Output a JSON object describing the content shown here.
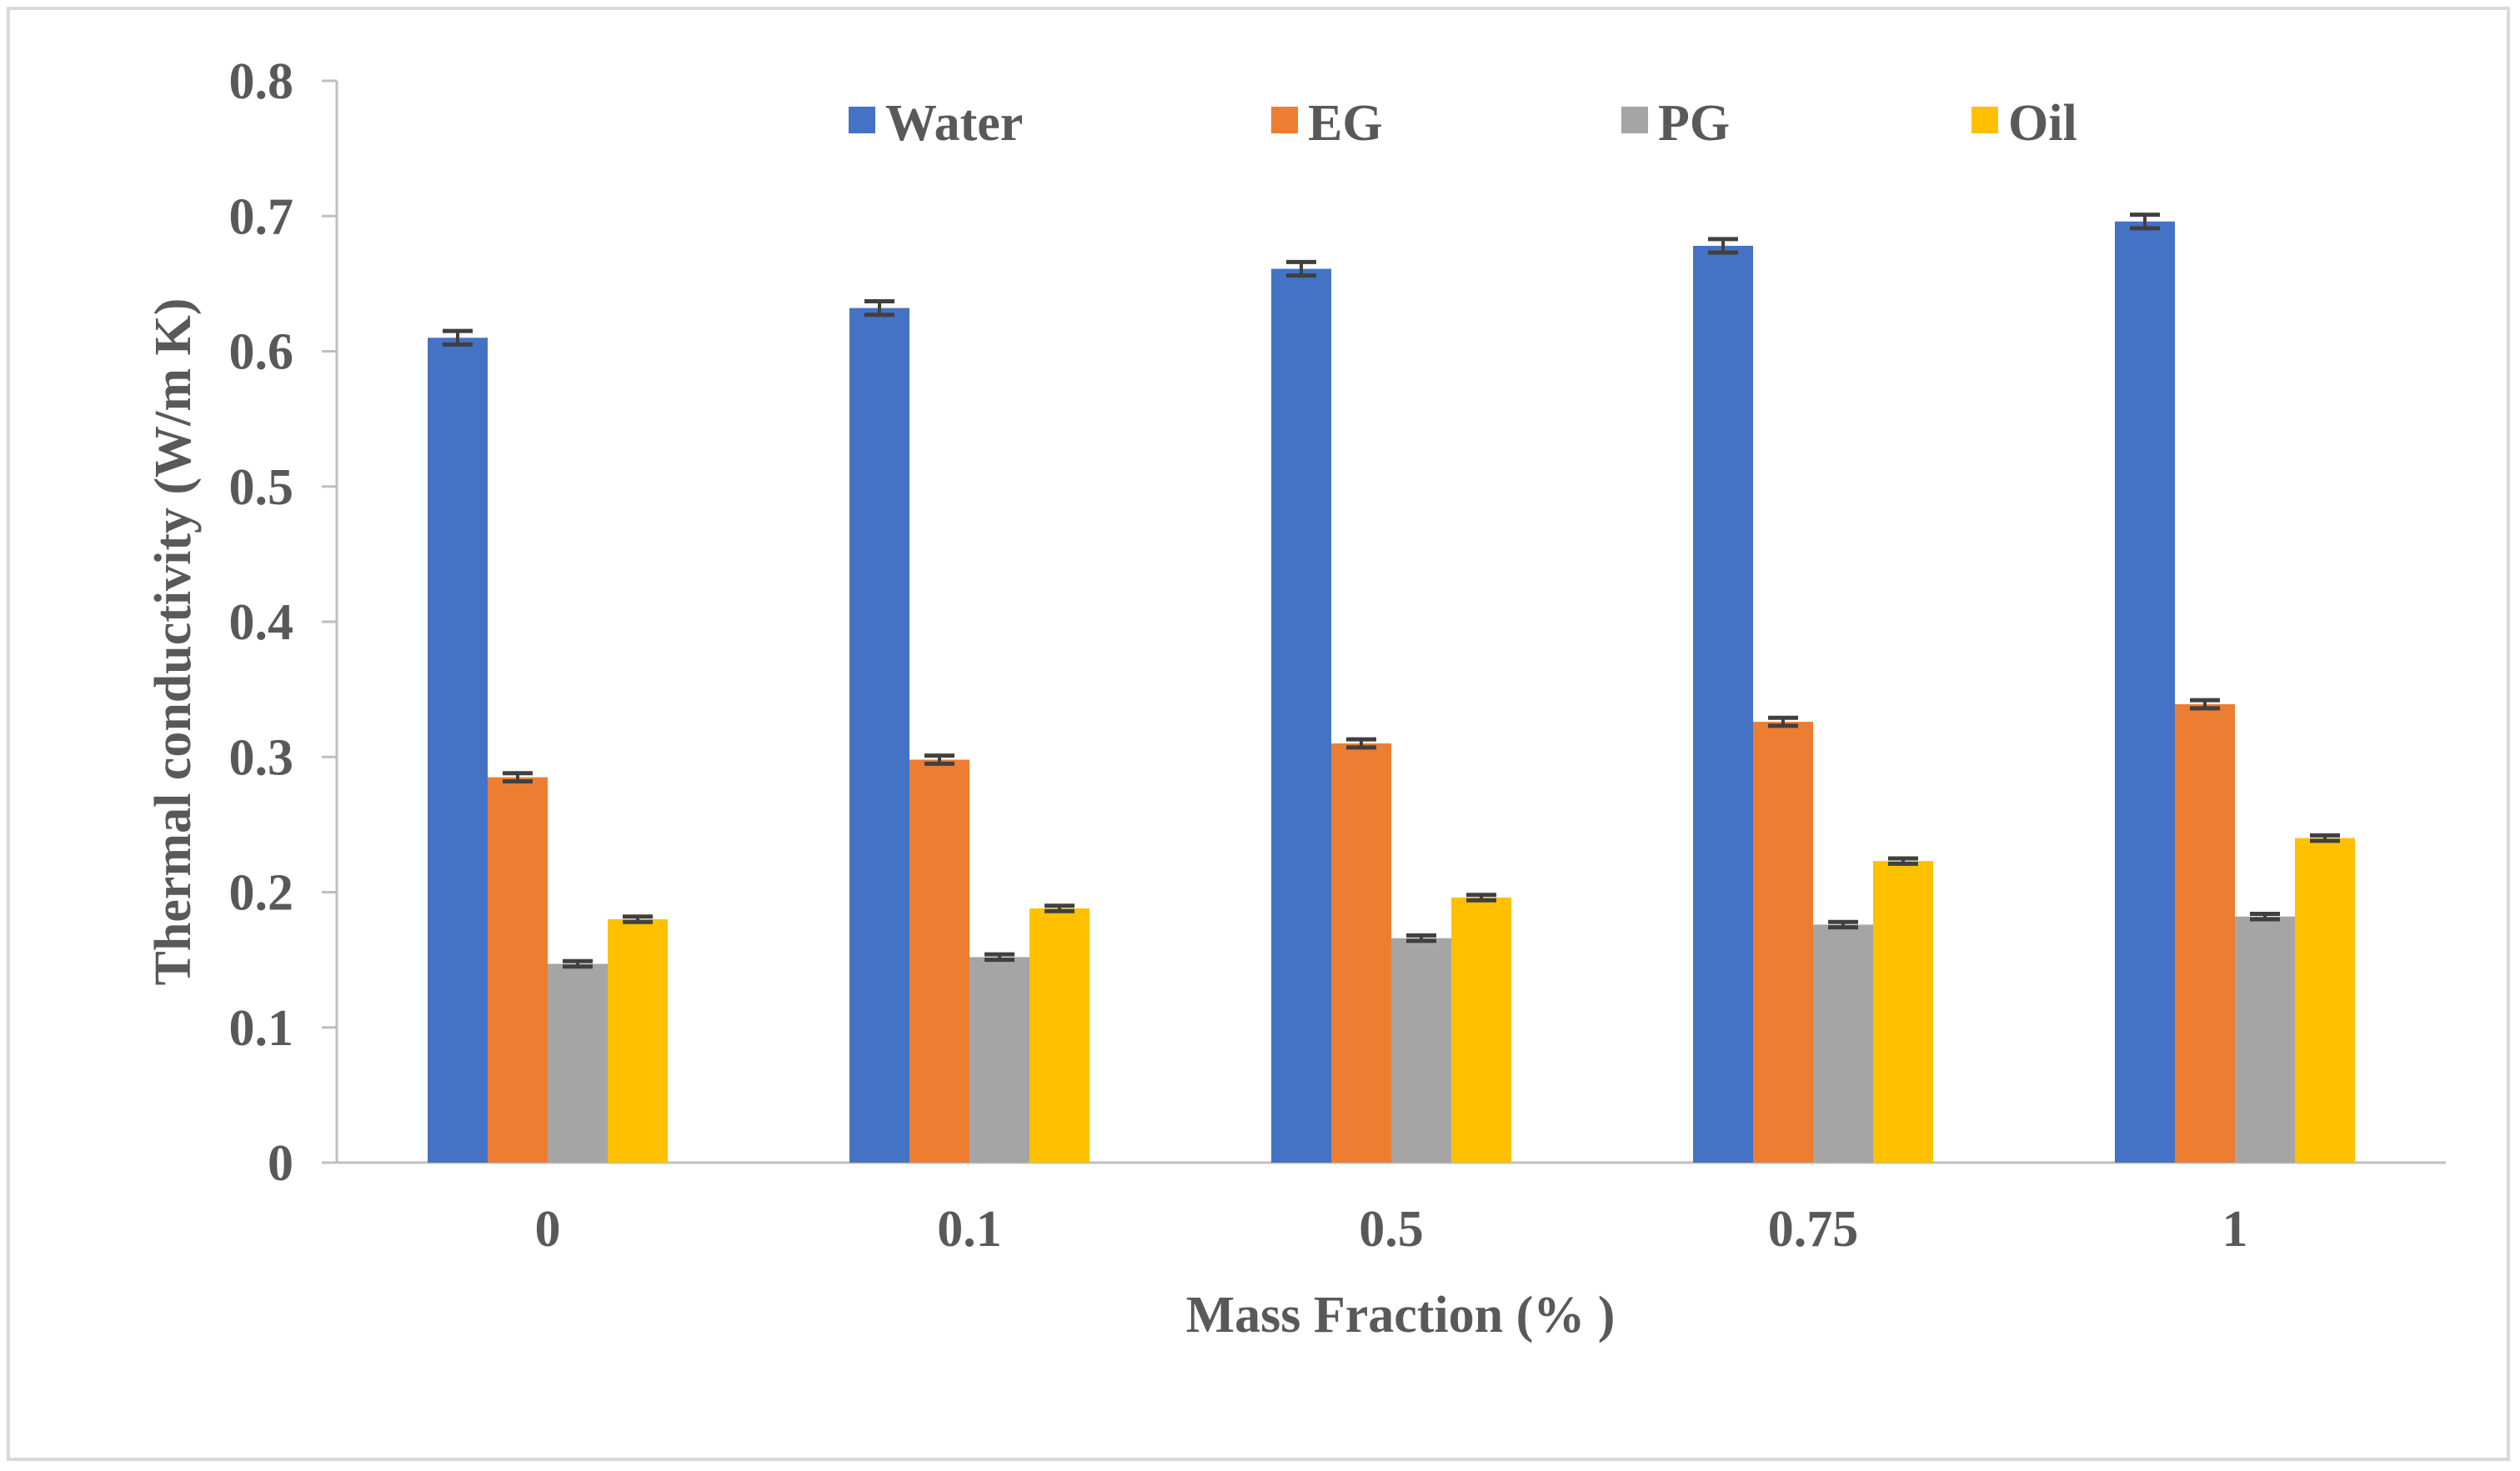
{
  "chart_data": {
    "type": "bar",
    "title": "",
    "xlabel": "Mass Fraction (% )",
    "ylabel": "Thermal conductivity (W/m K)",
    "ylim": [
      0,
      0.8
    ],
    "yticks": [
      "0",
      "0.1",
      "0.2",
      "0.3",
      "0.4",
      "0.5",
      "0.6",
      "0.7",
      "0.8"
    ],
    "categories": [
      "0",
      "0.1",
      "0.5",
      "0.75",
      "1"
    ],
    "legend_position": "top",
    "series": [
      {
        "name": "Water",
        "color": "#4472c4",
        "values": [
          0.61,
          0.632,
          0.661,
          0.678,
          0.696
        ],
        "errors": [
          0.005,
          0.005,
          0.005,
          0.005,
          0.005
        ]
      },
      {
        "name": "EG",
        "color": "#ed7d31",
        "values": [
          0.285,
          0.298,
          0.31,
          0.326,
          0.339
        ],
        "errors": [
          0.003,
          0.003,
          0.003,
          0.003,
          0.003
        ]
      },
      {
        "name": "PG",
        "color": "#a5a5a5",
        "values": [
          0.147,
          0.152,
          0.166,
          0.176,
          0.182
        ],
        "errors": [
          0.002,
          0.002,
          0.002,
          0.002,
          0.002
        ]
      },
      {
        "name": "Oil",
        "color": "#ffc000",
        "values": [
          0.18,
          0.188,
          0.196,
          0.223,
          0.24
        ],
        "errors": [
          0.002,
          0.002,
          0.002,
          0.002,
          0.002
        ]
      }
    ]
  }
}
